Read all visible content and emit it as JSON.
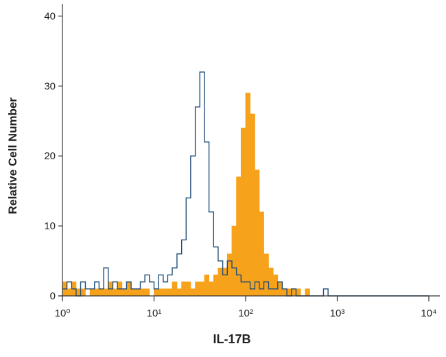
{
  "chart_data": {
    "type": "histogram",
    "x_label": "IL-17B",
    "y_label": "Relative Cell Number",
    "x": [
      1,
      1.12,
      1.26,
      1.41,
      1.58,
      1.78,
      2,
      2.24,
      2.51,
      2.82,
      3.16,
      3.55,
      3.98,
      4.47,
      5.01,
      5.62,
      6.31,
      7.08,
      7.94,
      8.91,
      10,
      11.2,
      12.6,
      14.1,
      15.8,
      17.8,
      20,
      22.4,
      25.1,
      28.2,
      31.6,
      35.5,
      39.8,
      44.7,
      50.1,
      56.2,
      63.1,
      70.8,
      79.4,
      89.1,
      100,
      112,
      126,
      141,
      158,
      178,
      200,
      224,
      251,
      282,
      316,
      355,
      398,
      447,
      501,
      562,
      631,
      708,
      794,
      891,
      1000,
      10000
    ],
    "series": [
      {
        "color": "#f7a21b",
        "fill": true,
        "values": [
          2,
          1,
          2,
          1,
          1,
          0,
          1,
          1,
          1,
          1,
          2,
          1,
          2,
          1,
          2,
          1,
          1,
          1,
          1,
          0,
          1,
          1,
          1,
          1,
          2,
          1,
          2,
          2,
          1,
          2,
          2,
          3,
          2,
          3,
          4,
          4,
          6,
          10,
          17,
          24,
          29,
          26,
          18,
          12,
          6,
          4,
          3,
          2,
          1,
          1,
          1,
          1,
          0,
          1,
          0,
          0,
          0,
          0,
          0,
          0,
          0,
          0
        ]
      },
      {
        "color": "#1f4e79",
        "fill": false,
        "values": [
          1,
          2,
          1,
          0,
          2,
          1,
          1,
          2,
          1,
          4,
          1,
          2,
          1,
          1,
          2,
          1,
          1,
          2,
          3,
          2,
          1,
          3,
          2,
          3,
          4,
          6,
          8,
          14,
          20,
          27,
          32,
          22,
          12,
          7,
          5,
          3,
          5,
          4,
          3,
          2,
          2,
          1,
          2,
          1,
          2,
          1,
          1,
          2,
          1,
          0,
          1,
          0,
          0,
          0,
          0,
          0,
          0,
          1,
          0,
          0,
          0,
          0
        ]
      }
    ],
    "xlim": [
      1,
      10000
    ],
    "x_log": true,
    "xticks": [
      {
        "value": 1,
        "label": "10⁰"
      },
      {
        "value": 10,
        "label": "10¹"
      },
      {
        "value": 100,
        "label": "10²"
      },
      {
        "value": 1000,
        "label": "10³"
      },
      {
        "value": 10000,
        "label": "10⁴"
      }
    ],
    "ylim": [
      0,
      42
    ],
    "yticks": [
      0,
      10,
      20,
      30,
      40
    ]
  }
}
